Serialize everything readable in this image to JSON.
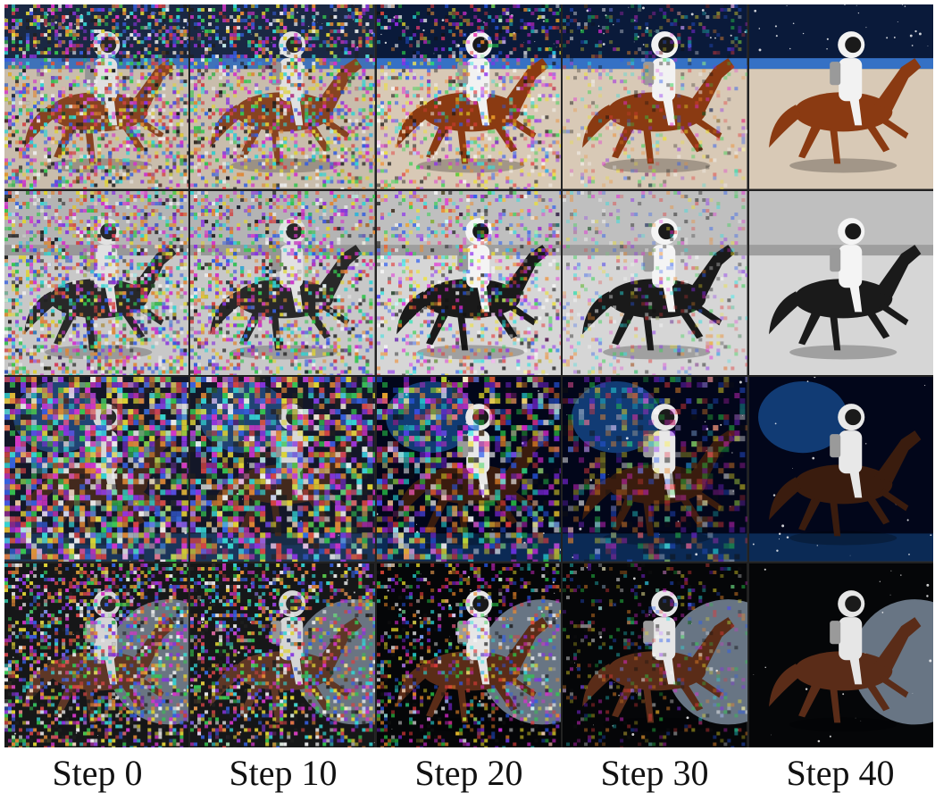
{
  "figure": {
    "rows": [
      {
        "style": "color-sky",
        "palette": {
          "sky": "#0a1a3a",
          "horizon": "#3a7bd5",
          "ground": "#d8c9b6",
          "horse": "#8a3a12",
          "suit": "#f2f2f2"
        }
      },
      {
        "style": "grayscale",
        "palette": {
          "sky": "#bfbfbf",
          "horizon": "#9a9a9a",
          "ground": "#d6d6d6",
          "horse": "#1a1a1a",
          "suit": "#f4f4f4"
        }
      },
      {
        "style": "deep-space",
        "palette": {
          "sky": "#02061a",
          "horizon": "#1c5fb0",
          "ground": "#0b2a55",
          "horse": "#3a1c0e",
          "suit": "#e8e8e8"
        }
      },
      {
        "style": "planet",
        "palette": {
          "sky": "#050608",
          "horizon": "#7a8a9a",
          "ground": "#3c4550",
          "horse": "#5a2c18",
          "suit": "#e6e6e6"
        }
      }
    ],
    "columns": [
      {
        "label": "Step 0",
        "noise": 1.0
      },
      {
        "label": "Step 10",
        "noise": 0.85
      },
      {
        "label": "Step 20",
        "noise": 0.6
      },
      {
        "label": "Step 30",
        "noise": 0.35
      },
      {
        "label": "Step 40",
        "noise": 0.0
      }
    ]
  },
  "icons": {
    "cell_image": "astronaut-riding-horse-image"
  }
}
